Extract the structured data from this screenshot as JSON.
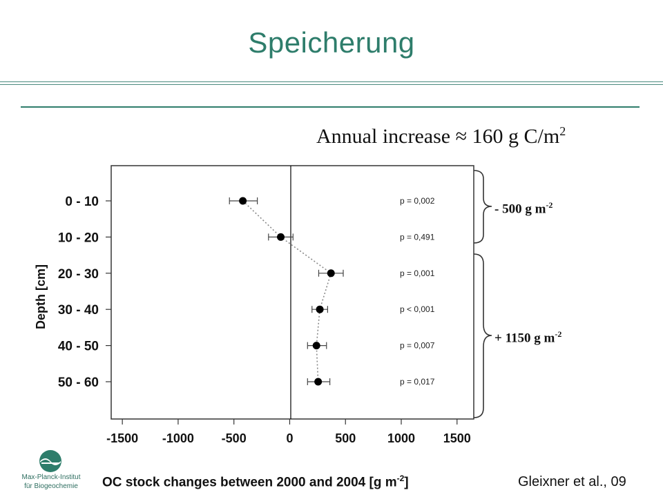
{
  "slide": {
    "title": "Speicherung",
    "annual_prefix": "Annual increase  ≈ 160 g C/m",
    "annual_sup": "2",
    "brace_top_label": "- 500 g m",
    "brace_bottom_label": "+ 1150 g m",
    "brace_sup": "-2",
    "citation": "Gleixner  et al., 09",
    "logo_line1": "Max-Planck-Institut",
    "logo_line2": "für Biogeochemie",
    "accent_color": "#2e7d6b"
  },
  "chart_data": {
    "type": "scatter",
    "ylabel": "Depth [cm]",
    "xlabel": "OC stock changes between 2000 and 2004 [g m",
    "xlabel_sup": "-2",
    "xlabel_suffix": "]",
    "xlim": [
      -1600,
      1650
    ],
    "xticks": [
      "-1500",
      "-1000",
      "-500",
      "0",
      "500",
      "1000",
      "1500"
    ],
    "xtick_values": [
      -1500,
      -1000,
      -500,
      0,
      500,
      1000,
      1500
    ],
    "categories": [
      "0 - 10",
      "10 - 20",
      "20 - 30",
      "30 - 40",
      "40 - 50",
      "50 - 60"
    ],
    "values": [
      -420,
      -80,
      370,
      270,
      240,
      255
    ],
    "error_low": [
      -540,
      -190,
      260,
      200,
      160,
      160
    ],
    "error_high": [
      -290,
      30,
      480,
      340,
      330,
      360
    ],
    "p_values": [
      "p = 0,002",
      "p = 0,491",
      "p = 0,001",
      "p < 0,001",
      "p = 0,007",
      "p = 0,017"
    ],
    "grid": false,
    "zero_line": true,
    "connected": "dotted"
  }
}
